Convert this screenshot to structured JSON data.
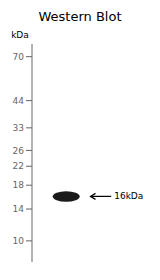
{
  "chart_data": {
    "type": "scatter",
    "title": "Western Blot",
    "y_label": "kDa",
    "log": "y",
    "ylim": [
      8,
      80
    ],
    "yticks": [
      70,
      44,
      33,
      26,
      22,
      18,
      14,
      10
    ],
    "categories": [
      null
    ],
    "values": [
      16
    ],
    "band_height": [
      1.8
    ],
    "color": "#1a1a1a",
    "annotations": [
      {
        "text": "16kDa",
        "y": 16
      }
    ],
    "tick_labels": "y"
  }
}
